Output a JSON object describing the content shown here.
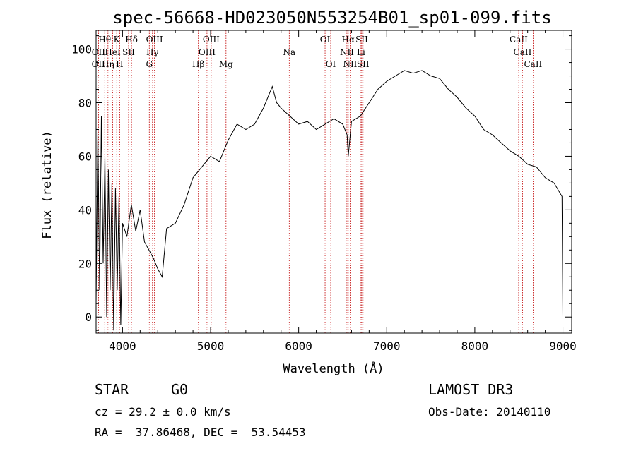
{
  "chart_data": {
    "type": "line",
    "title": "spec-56668-HD023050N553254B01_sp01-099.fits",
    "xlabel": "Wavelength (Å)",
    "ylabel": "Flux (relative)",
    "xlim": [
      3700,
      9100
    ],
    "ylim": [
      -6,
      107
    ],
    "xticks": [
      4000,
      5000,
      6000,
      7000,
      8000,
      9000
    ],
    "yticks": [
      0,
      20,
      40,
      60,
      80,
      100
    ],
    "grid": false,
    "series": [
      {
        "x": [
          3700,
          3720,
          3740,
          3760,
          3780,
          3800,
          3820,
          3840,
          3860,
          3880,
          3900,
          3920,
          3940,
          3960,
          3980,
          4000,
          4050,
          4100,
          4150,
          4200,
          4250,
          4300,
          4350,
          4400,
          4450,
          4500,
          4600,
          4700,
          4800,
          4900,
          5000,
          5100,
          5200,
          5300,
          5400,
          5500,
          5600,
          5650,
          5700,
          5750,
          5800,
          5900,
          6000,
          6100,
          6200,
          6300,
          6400,
          6500,
          6550,
          6563,
          6600,
          6700,
          6800,
          6900,
          7000,
          7100,
          7200,
          7300,
          7400,
          7500,
          7600,
          7700,
          7800,
          7900,
          8000,
          8100,
          8200,
          8300,
          8400,
          8500,
          8600,
          8700,
          8800,
          8900,
          8990,
          9000
        ],
        "y": [
          5,
          70,
          10,
          75,
          20,
          60,
          0,
          55,
          10,
          50,
          -5,
          48,
          10,
          45,
          -3,
          35,
          30,
          42,
          32,
          40,
          28,
          25,
          22,
          18,
          15,
          33,
          35,
          42,
          52,
          56,
          60,
          58,
          66,
          72,
          70,
          72,
          78,
          82,
          86,
          80,
          78,
          75,
          72,
          73,
          70,
          72,
          74,
          72,
          68,
          60,
          73,
          75,
          80,
          85,
          88,
          90,
          92,
          91,
          92,
          90,
          89,
          85,
          82,
          78,
          75,
          70,
          68,
          65,
          62,
          60,
          57,
          56,
          52,
          50,
          45,
          0
        ]
      }
    ],
    "line_markers": [
      {
        "label": "Hθ",
        "x": 3798,
        "row": 0
      },
      {
        "label": "K",
        "x": 3934,
        "row": 0
      },
      {
        "label": "Hδ",
        "x": 4102,
        "row": 0
      },
      {
        "label": "OIII",
        "x": 4363,
        "row": 0
      },
      {
        "label": "OIII",
        "x": 5007,
        "row": 0
      },
      {
        "label": "OI",
        "x": 6300,
        "row": 0
      },
      {
        "label": "Hα",
        "x": 6563,
        "row": 0
      },
      {
        "label": "SII",
        "x": 6717,
        "row": 0
      },
      {
        "label": "CaII",
        "x": 8498,
        "row": 0
      },
      {
        "label": "OII",
        "x": 3727,
        "row": 1
      },
      {
        "label": "HeI",
        "x": 3889,
        "row": 1
      },
      {
        "label": "SII",
        "x": 4069,
        "row": 1
      },
      {
        "label": "Hγ",
        "x": 4340,
        "row": 1
      },
      {
        "label": "OIII",
        "x": 4959,
        "row": 1
      },
      {
        "label": "Na",
        "x": 5893,
        "row": 1
      },
      {
        "label": "NII",
        "x": 6548,
        "row": 1
      },
      {
        "label": "Li",
        "x": 6708,
        "row": 1
      },
      {
        "label": "CaII",
        "x": 8542,
        "row": 1
      },
      {
        "label": "OII",
        "x": 3726,
        "row": 2
      },
      {
        "label": "Hη",
        "x": 3835,
        "row": 2
      },
      {
        "label": "H",
        "x": 3968,
        "row": 2
      },
      {
        "label": "G",
        "x": 4304,
        "row": 2
      },
      {
        "label": "Hβ",
        "x": 4861,
        "row": 2
      },
      {
        "label": "Mg",
        "x": 5175,
        "row": 2
      },
      {
        "label": "OI",
        "x": 6364,
        "row": 2
      },
      {
        "label": "NII",
        "x": 6584,
        "row": 2
      },
      {
        "label": "SII",
        "x": 6731,
        "row": 2
      },
      {
        "label": "CaII",
        "x": 8662,
        "row": 2
      }
    ]
  },
  "info": {
    "class": "STAR",
    "subclass": "G0",
    "survey": "LAMOST DR3",
    "cz": "cz = 29.2 ± 0.0 km/s",
    "obsdate": "Obs-Date: 20140110",
    "radec": "RA =  37.86468, DEC =  53.54453"
  }
}
